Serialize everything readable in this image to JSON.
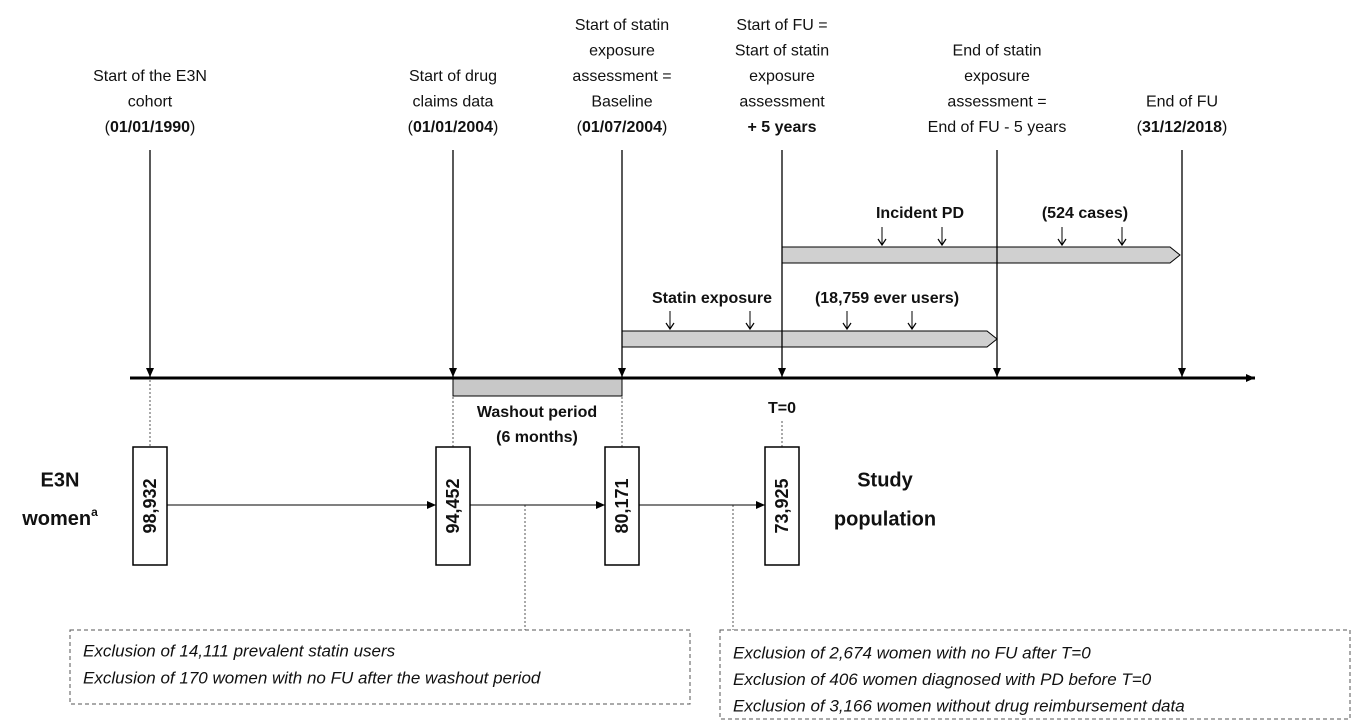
{
  "milestones": [
    {
      "lines": [
        "Start of the E3N",
        "cohort"
      ],
      "date": {
        "open": "(",
        "bold": "01/01/1990",
        "close": ")"
      }
    },
    {
      "lines": [
        "Start of drug",
        "claims data"
      ],
      "date": {
        "open": "(",
        "bold": "01/01/2004",
        "close": ")"
      }
    },
    {
      "lines": [
        "Start of statin",
        "exposure",
        "assessment =",
        "Baseline"
      ],
      "date": {
        "open": "(",
        "bold": "01/07/2004",
        "close": ")"
      }
    },
    {
      "lines": [
        "Start of FU =",
        "Start of statin",
        "exposure",
        "assessment"
      ],
      "date": {
        "bold": "+ 5 years"
      }
    },
    {
      "lines": [
        "End of statin",
        "exposure",
        "assessment =",
        "End of FU - 5 years"
      ]
    },
    {
      "lines": [
        "End of FU"
      ],
      "date": {
        "open": "(",
        "bold": "31/12/2018",
        "close": ")"
      }
    }
  ],
  "incident": {
    "label": "Incident PD",
    "count": "(524 cases)"
  },
  "statin": {
    "label": "Statin exposure",
    "count": "(18,759 ever users)"
  },
  "washout": {
    "lines": [
      "Washout period",
      "(6 months)"
    ]
  },
  "t0": "T=0",
  "counts": [
    "98,932",
    "94,452",
    "80,171",
    "73,925"
  ],
  "left_label": {
    "line1": "E3N",
    "line2": "women",
    "sup": "a"
  },
  "right_label": {
    "line1": "Study",
    "line2": "population"
  },
  "exclusions_left": [
    "Exclusion of 14,111 prevalent statin users",
    "Exclusion of 170 women with no FU after the washout period"
  ],
  "exclusions_right": [
    "Exclusion of 2,674 women with no FU after T=0",
    "Exclusion of 406 women diagnosed with PD before T=0",
    "Exclusion of 3,166 women without drug reimbursement data"
  ]
}
